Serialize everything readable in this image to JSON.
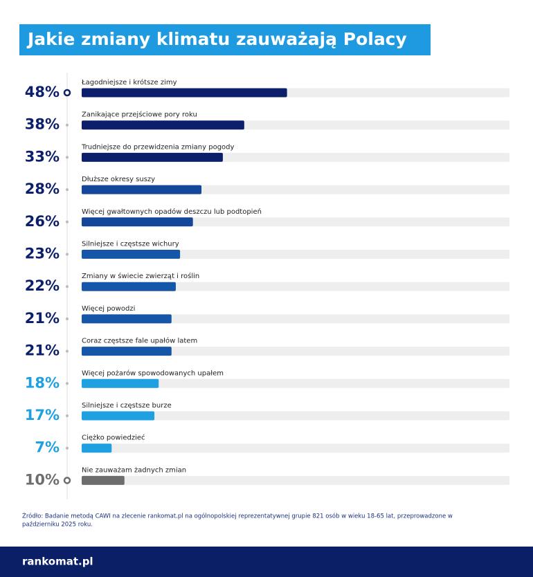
{
  "chart_data": {
    "type": "bar",
    "title": "Jakie zmiany klimatu zauważają Polacy",
    "categories": [
      "Łagodniejsze i krótsze zimy",
      "Zanikające przejściowe pory roku",
      "Trudniejsze do przewidzenia zmiany pogody",
      "Dłuższe okresy suszy",
      "Więcej gwałtownych opadów deszczu lub podtopień",
      "Silniejsze i częstsze wichury",
      "Zmiany w świecie zwierząt i roślin",
      "Więcej powodzi",
      "Coraz częstsze fale upałów latem",
      "Więcej pożarów spowodowanych upałem",
      "Silniejsze i częstsze burze",
      "Ciężko powiedzieć",
      "Nie zauważam żadnych zmian"
    ],
    "values": [
      48,
      38,
      33,
      28,
      26,
      23,
      22,
      21,
      21,
      18,
      17,
      7,
      10
    ],
    "value_labels": [
      "48%",
      "38%",
      "33%",
      "28%",
      "26%",
      "23%",
      "22%",
      "21%",
      "21%",
      "18%",
      "17%",
      "7%",
      "10%"
    ],
    "colors": [
      "#0c1f6b",
      "#0c1f6b",
      "#0c1f6b",
      "#14479a",
      "#14479a",
      "#1656a8",
      "#1656a8",
      "#1656a8",
      "#1656a8",
      "#1fa0e0",
      "#1fa0e0",
      "#1fa0e0",
      "#6d6d6d"
    ],
    "label_colors": [
      "#0c1f6b",
      "#0c1f6b",
      "#0c1f6b",
      "#0c1f6b",
      "#0c1f6b",
      "#0c1f6b",
      "#0c1f6b",
      "#0c1f6b",
      "#0c1f6b",
      "#1fa0e0",
      "#1fa0e0",
      "#1fa0e0",
      "#6d6d6d"
    ],
    "xlim": [
      0,
      100
    ]
  },
  "source": "Źródło: Badanie metodą CAWI na zlecenie rankomat.pl na ogólnopolskiej reprezentatywnej grupie 821 osób w wieku 18-65 lat, przeprowadzone w",
  "source_line2": "październiku 2025 roku.",
  "brand": "rankomat.pl"
}
